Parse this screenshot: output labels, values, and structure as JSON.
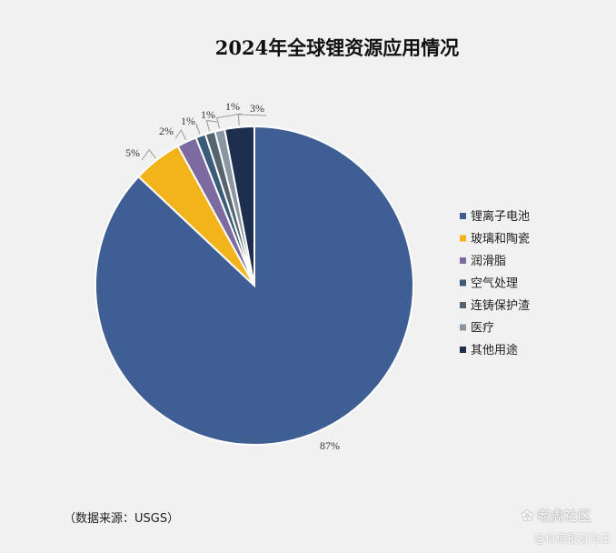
{
  "chart_data": {
    "type": "pie",
    "title": "2024年全球锂资源应用情况",
    "categories": [
      "锂离子电池",
      "玻璃和陶瓷",
      "润滑脂",
      "空气处理",
      "连铸保护渣",
      "医疗",
      "其他用途"
    ],
    "values": [
      87,
      5,
      2,
      1,
      1,
      1,
      3
    ],
    "value_labels": [
      "87%",
      "5%",
      "2%",
      "1%",
      "1%",
      "1%",
      "3%"
    ],
    "colors": [
      "#3f5f94",
      "#f2b31b",
      "#7d6aa1",
      "#3a5c78",
      "#55646f",
      "#8a97a3",
      "#1e2e4e"
    ],
    "legend_position": "right",
    "start_angle": "12 o'clock",
    "direction": "clockwise"
  },
  "source": "（数据来源：USGS）",
  "watermark": {
    "icon": "tiger-logo-icon",
    "main": "老虎社区",
    "sub": "@价值投资为王"
  }
}
